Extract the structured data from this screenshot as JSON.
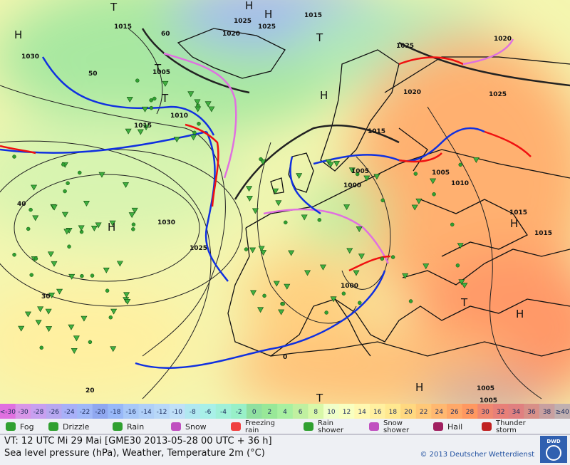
{
  "map": {
    "labels": [
      1015,
      1030,
      1025,
      1020,
      1025,
      1015,
      1020,
      1025,
      1005,
      1020,
      1025,
      1010,
      1015,
      1015,
      1005,
      1005,
      1010,
      1000,
      1030,
      1025,
      1015,
      1015,
      1000,
      1005,
      1005,
      60,
      50,
      40,
      30,
      20,
      0,
      "H",
      "H",
      "H",
      "H",
      "H",
      "H",
      "H",
      "H",
      "T",
      "T",
      "T",
      "T",
      "T",
      "T"
    ]
  },
  "scale": {
    "labels": [
      "<-30",
      -30,
      -28,
      -26,
      -24,
      -22,
      -20,
      -18,
      -16,
      -14,
      -12,
      -10,
      -8,
      -6,
      -4,
      -2,
      0,
      2,
      4,
      6,
      8,
      10,
      12,
      14,
      16,
      18,
      20,
      22,
      24,
      26,
      28,
      30,
      32,
      34,
      36,
      38,
      "≥40"
    ],
    "colors": [
      "#e070e0",
      "#d896e8",
      "#c8a0f0",
      "#b8a8f0",
      "#a8b0f8",
      "#a0b8f8",
      "#90a8f0",
      "#98b8f8",
      "#a8c8f8",
      "#b0d0f8",
      "#b8d8f8",
      "#c0e0f8",
      "#b0e8f0",
      "#a8f0e8",
      "#a0f0d8",
      "#98f0c8",
      "#90e0a0",
      "#98e898",
      "#a8f0a0",
      "#c0f0a0",
      "#d8f8a8",
      "#f0ffc8",
      "#f8ffc0",
      "#fff8b0",
      "#fff0a0",
      "#ffe890",
      "#ffd880",
      "#ffc878",
      "#ffb870",
      "#ffa868",
      "#ff9860",
      "#f08870",
      "#e88078",
      "#e08080",
      "#d89088",
      "#c8a0a0",
      "#c0b0b0"
    ]
  },
  "legend": {
    "items": [
      [
        "Fog"
      ],
      [
        "Drizzle"
      ],
      [
        "Rain"
      ],
      [
        "Snow"
      ],
      [
        "Freezing",
        "rain"
      ],
      [
        "Rain",
        "shower"
      ],
      [
        "Snow",
        "shower"
      ],
      [
        "Hail"
      ],
      [
        "Thunder",
        "storm"
      ]
    ]
  },
  "footer": {
    "valid_time": "VT: 12 UTC Mi  29 Mai [GME30 2013-05-28  00 UTC + 36 h]",
    "description": "Sea level pressure (hPa), Weather, Temperature 2m (°C)",
    "copyright": "© 2013 Deutscher Wetterdienst",
    "logo": "DWD"
  }
}
